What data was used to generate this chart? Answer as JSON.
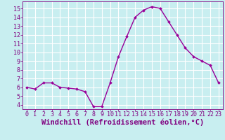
{
  "x": [
    0,
    1,
    2,
    3,
    4,
    5,
    6,
    7,
    8,
    9,
    10,
    11,
    12,
    13,
    14,
    15,
    16,
    17,
    18,
    19,
    20,
    21,
    22,
    23
  ],
  "y": [
    6.0,
    5.8,
    6.5,
    6.5,
    6.0,
    5.9,
    5.8,
    5.5,
    3.8,
    3.8,
    6.5,
    9.5,
    11.8,
    14.0,
    14.8,
    15.2,
    15.0,
    13.5,
    12.0,
    10.5,
    9.5,
    9.0,
    8.5,
    6.5
  ],
  "line_color": "#990099",
  "marker": "D",
  "marker_size": 2.0,
  "bg_color": "#c8eef0",
  "grid_color": "#ffffff",
  "xlabel": "Windchill (Refroidissement éolien,°C)",
  "xlabel_color": "#800080",
  "xlabel_fontsize": 7.5,
  "tick_label_color": "#800080",
  "tick_fontsize": 6.0,
  "ylim": [
    3.5,
    15.8
  ],
  "xlim": [
    -0.5,
    23.5
  ],
  "yticks": [
    4,
    5,
    6,
    7,
    8,
    9,
    10,
    11,
    12,
    13,
    14,
    15
  ],
  "xticks": [
    0,
    1,
    2,
    3,
    4,
    5,
    6,
    7,
    8,
    9,
    10,
    11,
    12,
    13,
    14,
    15,
    16,
    17,
    18,
    19,
    20,
    21,
    22,
    23
  ]
}
